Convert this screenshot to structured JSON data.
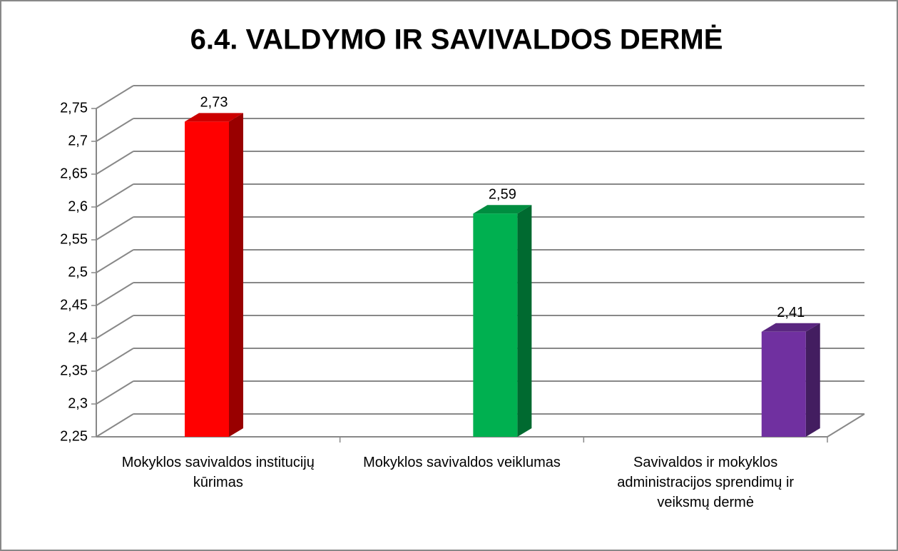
{
  "chart_data": {
    "type": "bar3d",
    "title": "6.4. VALDYMO IR SAVIVALDOS DERMĖ",
    "categories": [
      "Mokyklos savivaldos institucijų kūrimas",
      "Mokyklos savivaldos veiklumas",
      "Savivaldos ir mokyklos administracijos sprendimų ir veiksmų dermė"
    ],
    "values": [
      2.73,
      2.59,
      2.41
    ],
    "value_labels": [
      "2,73",
      "2,59",
      "2,41"
    ],
    "colors": [
      "#ff0000",
      "#00b050",
      "#7030a0"
    ],
    "ylim": [
      2.25,
      2.75
    ],
    "yticks": [
      {
        "value": 2.25,
        "label": "2,25"
      },
      {
        "value": 2.3,
        "label": "2,3"
      },
      {
        "value": 2.35,
        "label": "2,35"
      },
      {
        "value": 2.4,
        "label": "2,4"
      },
      {
        "value": 2.45,
        "label": "2,45"
      },
      {
        "value": 2.5,
        "label": "2,5"
      },
      {
        "value": 2.55,
        "label": "2,55"
      },
      {
        "value": 2.6,
        "label": "2,6"
      },
      {
        "value": 2.65,
        "label": "2,65"
      },
      {
        "value": 2.7,
        "label": "2,7"
      },
      {
        "value": 2.75,
        "label": "2,75"
      }
    ],
    "grid": true
  }
}
